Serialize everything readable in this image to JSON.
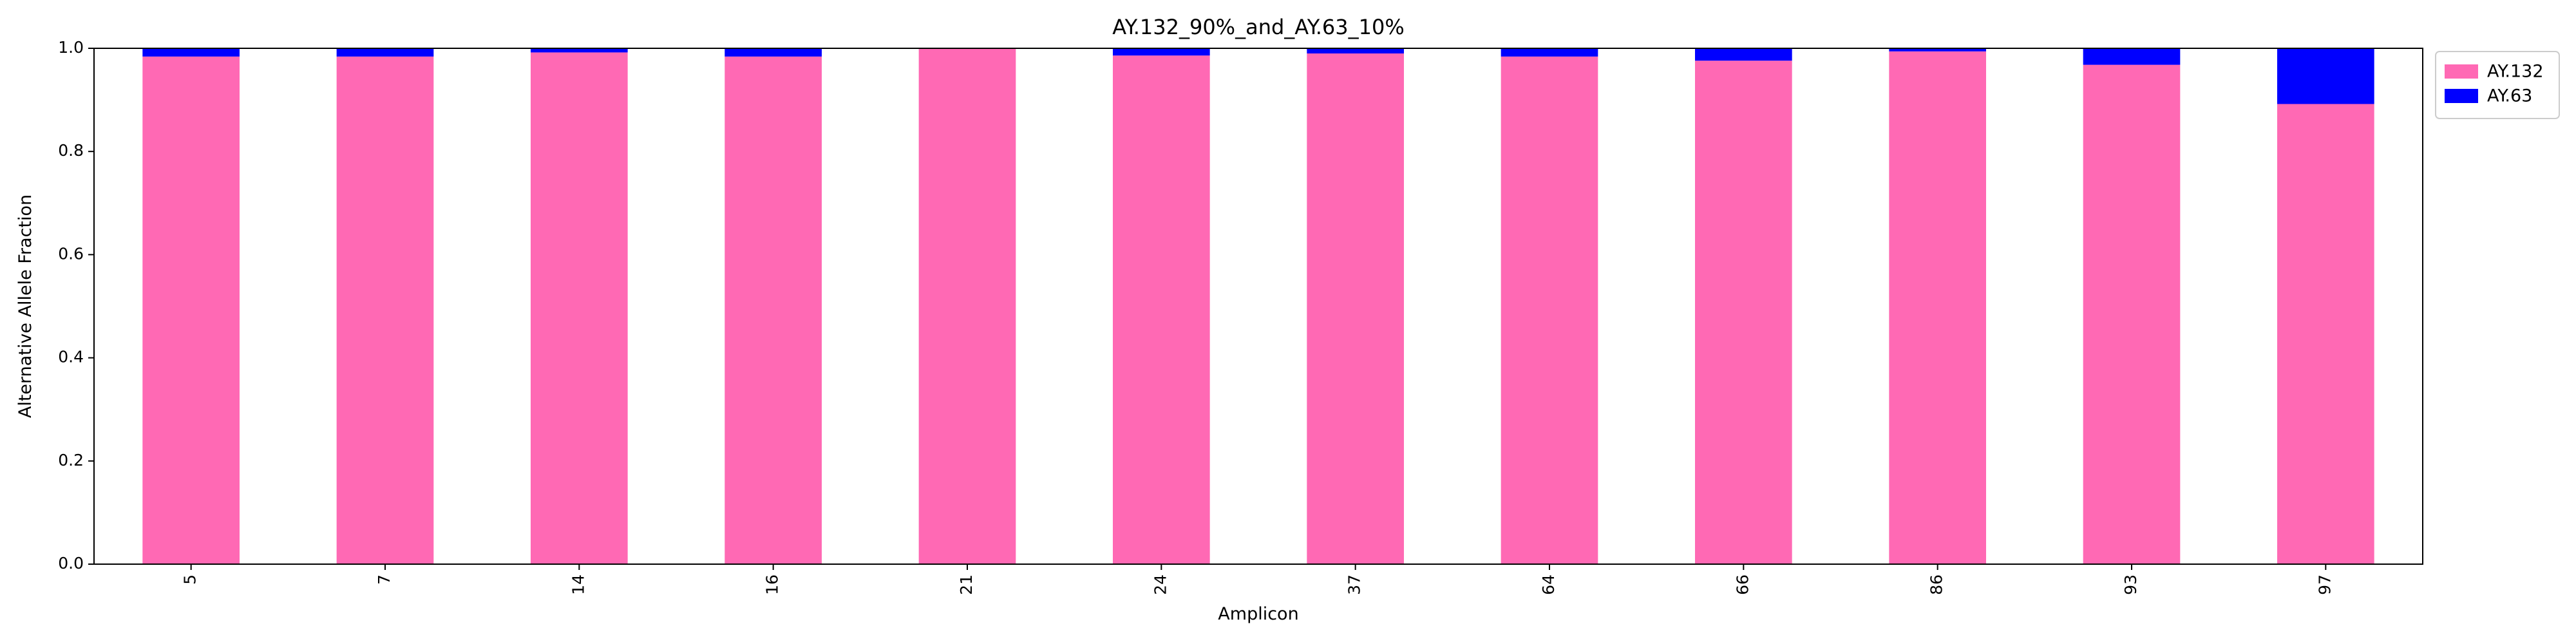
{
  "chart_data": {
    "type": "bar",
    "stacked": true,
    "title": "AY.132_90%_and_AY.63_10%",
    "xlabel": "Amplicon",
    "ylabel": "Alternative Allele Fraction",
    "ylim": [
      0,
      1
    ],
    "yticks": [
      "0.0",
      "0.2",
      "0.4",
      "0.6",
      "0.8",
      "1.0"
    ],
    "categories": [
      "5",
      "7",
      "14",
      "16",
      "21",
      "24",
      "37",
      "64",
      "66",
      "86",
      "93",
      "97"
    ],
    "series": [
      {
        "name": "AY.132",
        "color": "#ff69b4",
        "values": [
          0.984,
          0.984,
          0.992,
          0.984,
          1.0,
          0.986,
          0.99,
          0.984,
          0.976,
          0.994,
          0.968,
          0.892
        ]
      },
      {
        "name": "AY.63",
        "color": "#0000ff",
        "values": [
          0.016,
          0.016,
          0.008,
          0.016,
          0.0,
          0.014,
          0.01,
          0.016,
          0.024,
          0.006,
          0.032,
          0.108
        ]
      }
    ],
    "legend": {
      "position": "outside-top-right"
    },
    "grid": false
  }
}
